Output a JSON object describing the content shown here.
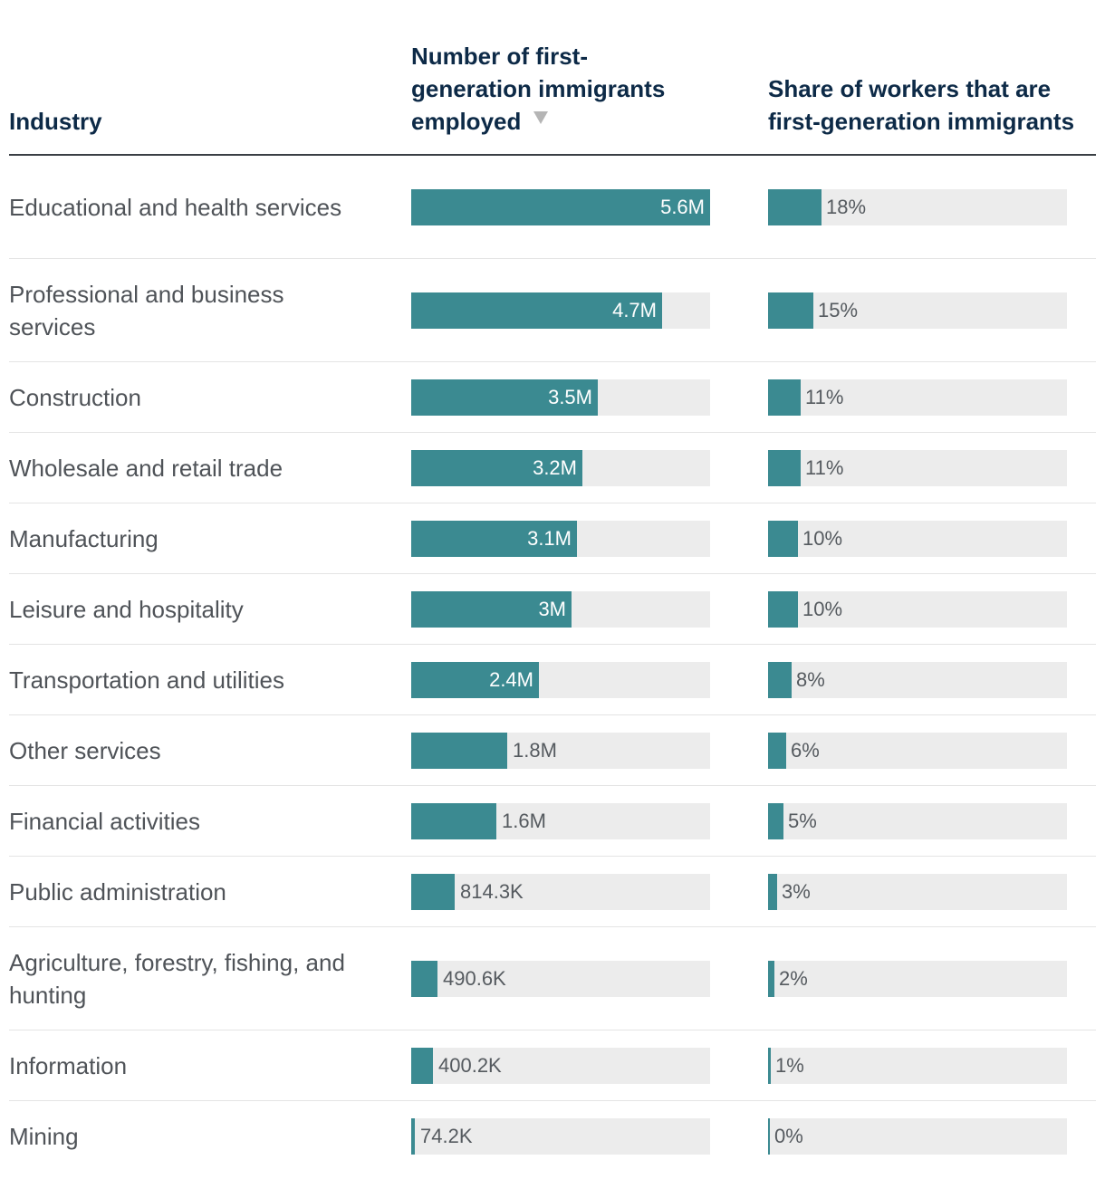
{
  "header": {
    "industry": "Industry",
    "number": "Number of first-generation immigrants employed",
    "share": "Share of workers that are first-generation immigrants",
    "sort_icon": "sort-descending-icon"
  },
  "colors": {
    "bar": "#3b8a91",
    "track": "#ececec",
    "heading": "#0d2a47"
  },
  "chart_data": {
    "type": "table",
    "columns": [
      "Industry",
      "Number of first-generation immigrants employed",
      "Share of workers that are first-generation immigrants"
    ],
    "number_max": 5600000,
    "share_max": 100,
    "rows": [
      {
        "industry": "Educational and health services",
        "number": 5600000,
        "number_label": "5.6M",
        "share": 18,
        "share_label": "18%"
      },
      {
        "industry": "Professional and business services",
        "number": 4700000,
        "number_label": "4.7M",
        "share": 15,
        "share_label": "15%"
      },
      {
        "industry": "Construction",
        "number": 3500000,
        "number_label": "3.5M",
        "share": 11,
        "share_label": "11%"
      },
      {
        "industry": "Wholesale and retail trade",
        "number": 3200000,
        "number_label": "3.2M",
        "share": 11,
        "share_label": "11%"
      },
      {
        "industry": "Manufacturing",
        "number": 3100000,
        "number_label": "3.1M",
        "share": 10,
        "share_label": "10%"
      },
      {
        "industry": "Leisure and hospitality",
        "number": 3000000,
        "number_label": "3M",
        "share": 10,
        "share_label": "10%"
      },
      {
        "industry": "Transportation and utilities",
        "number": 2400000,
        "number_label": "2.4M",
        "share": 8,
        "share_label": "8%"
      },
      {
        "industry": "Other services",
        "number": 1800000,
        "number_label": "1.8M",
        "share": 6,
        "share_label": "6%"
      },
      {
        "industry": "Financial activities",
        "number": 1600000,
        "number_label": "1.6M",
        "share": 5,
        "share_label": "5%"
      },
      {
        "industry": "Public administration",
        "number": 814300,
        "number_label": "814.3K",
        "share": 3,
        "share_label": "3%"
      },
      {
        "industry": "Agriculture, forestry, fishing, and hunting",
        "number": 490600,
        "number_label": "490.6K",
        "share": 2,
        "share_label": "2%"
      },
      {
        "industry": "Information",
        "number": 400200,
        "number_label": "400.2K",
        "share": 1,
        "share_label": "1%"
      },
      {
        "industry": "Mining",
        "number": 74200,
        "number_label": "74.2K",
        "share": 0,
        "share_label": "0%"
      }
    ]
  }
}
